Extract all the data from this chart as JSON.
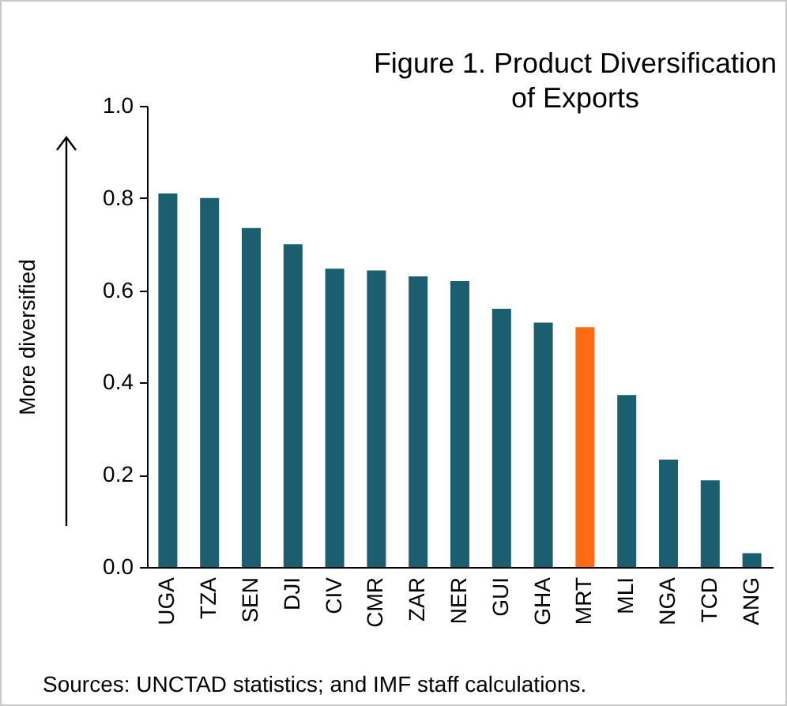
{
  "chart_data": {
    "type": "bar",
    "title": "Figure 1. Product Diversification of Exports",
    "ylabel": "More diversified",
    "categories": [
      "UGA",
      "TZA",
      "SEN",
      "DJI",
      "CIV",
      "CMR",
      "ZAR",
      "NER",
      "GUI",
      "GHA",
      "MRT",
      "MLI",
      "NGA",
      "TCD",
      "ANG"
    ],
    "values": [
      0.81,
      0.8,
      0.735,
      0.7,
      0.647,
      0.643,
      0.63,
      0.62,
      0.56,
      0.53,
      0.52,
      0.373,
      0.233,
      0.188,
      0.03
    ],
    "colors": [
      "#1b5e6f",
      "#1b5e6f",
      "#1b5e6f",
      "#1b5e6f",
      "#1b5e6f",
      "#1b5e6f",
      "#1b5e6f",
      "#1b5e6f",
      "#1b5e6f",
      "#1b5e6f",
      "#ff6a13",
      "#1b5e6f",
      "#1b5e6f",
      "#1b5e6f",
      "#1b5e6f"
    ],
    "ylim": [
      0,
      1
    ],
    "yticks": [
      {
        "value": 0,
        "label": "0.0"
      },
      {
        "value": 0.2,
        "label": "0.2"
      },
      {
        "value": 0.4,
        "label": "0.4"
      },
      {
        "value": 0.6,
        "label": "0.6"
      },
      {
        "value": 0.8,
        "label": "0.8"
      },
      {
        "value": 1,
        "label": "1.0"
      }
    ],
    "grid": false,
    "legend": false,
    "annotations": [
      "Sources: UNCTAD statistics; and IMF staff calculations."
    ]
  }
}
